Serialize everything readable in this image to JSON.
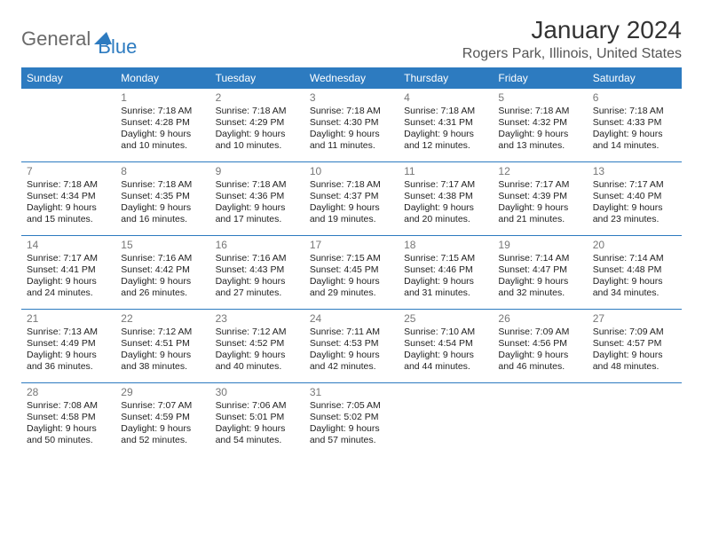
{
  "logo": {
    "part1": "General",
    "part2": "Blue"
  },
  "title": "January 2024",
  "location": "Rogers Park, Illinois, United States",
  "colors": {
    "header_bg": "#2d7bc0",
    "header_text": "#ffffff",
    "rule": "#2d7bc0",
    "body_text": "#222222",
    "muted": "#777777"
  },
  "weekdays": [
    "Sunday",
    "Monday",
    "Tuesday",
    "Wednesday",
    "Thursday",
    "Friday",
    "Saturday"
  ],
  "weeks": [
    [
      {
        "num": "",
        "lines": []
      },
      {
        "num": "1",
        "lines": [
          "Sunrise: 7:18 AM",
          "Sunset: 4:28 PM",
          "Daylight: 9 hours and 10 minutes."
        ]
      },
      {
        "num": "2",
        "lines": [
          "Sunrise: 7:18 AM",
          "Sunset: 4:29 PM",
          "Daylight: 9 hours and 10 minutes."
        ]
      },
      {
        "num": "3",
        "lines": [
          "Sunrise: 7:18 AM",
          "Sunset: 4:30 PM",
          "Daylight: 9 hours and 11 minutes."
        ]
      },
      {
        "num": "4",
        "lines": [
          "Sunrise: 7:18 AM",
          "Sunset: 4:31 PM",
          "Daylight: 9 hours and 12 minutes."
        ]
      },
      {
        "num": "5",
        "lines": [
          "Sunrise: 7:18 AM",
          "Sunset: 4:32 PM",
          "Daylight: 9 hours and 13 minutes."
        ]
      },
      {
        "num": "6",
        "lines": [
          "Sunrise: 7:18 AM",
          "Sunset: 4:33 PM",
          "Daylight: 9 hours and 14 minutes."
        ]
      }
    ],
    [
      {
        "num": "7",
        "lines": [
          "Sunrise: 7:18 AM",
          "Sunset: 4:34 PM",
          "Daylight: 9 hours and 15 minutes."
        ]
      },
      {
        "num": "8",
        "lines": [
          "Sunrise: 7:18 AM",
          "Sunset: 4:35 PM",
          "Daylight: 9 hours and 16 minutes."
        ]
      },
      {
        "num": "9",
        "lines": [
          "Sunrise: 7:18 AM",
          "Sunset: 4:36 PM",
          "Daylight: 9 hours and 17 minutes."
        ]
      },
      {
        "num": "10",
        "lines": [
          "Sunrise: 7:18 AM",
          "Sunset: 4:37 PM",
          "Daylight: 9 hours and 19 minutes."
        ]
      },
      {
        "num": "11",
        "lines": [
          "Sunrise: 7:17 AM",
          "Sunset: 4:38 PM",
          "Daylight: 9 hours and 20 minutes."
        ]
      },
      {
        "num": "12",
        "lines": [
          "Sunrise: 7:17 AM",
          "Sunset: 4:39 PM",
          "Daylight: 9 hours and 21 minutes."
        ]
      },
      {
        "num": "13",
        "lines": [
          "Sunrise: 7:17 AM",
          "Sunset: 4:40 PM",
          "Daylight: 9 hours and 23 minutes."
        ]
      }
    ],
    [
      {
        "num": "14",
        "lines": [
          "Sunrise: 7:17 AM",
          "Sunset: 4:41 PM",
          "Daylight: 9 hours and 24 minutes."
        ]
      },
      {
        "num": "15",
        "lines": [
          "Sunrise: 7:16 AM",
          "Sunset: 4:42 PM",
          "Daylight: 9 hours and 26 minutes."
        ]
      },
      {
        "num": "16",
        "lines": [
          "Sunrise: 7:16 AM",
          "Sunset: 4:43 PM",
          "Daylight: 9 hours and 27 minutes."
        ]
      },
      {
        "num": "17",
        "lines": [
          "Sunrise: 7:15 AM",
          "Sunset: 4:45 PM",
          "Daylight: 9 hours and 29 minutes."
        ]
      },
      {
        "num": "18",
        "lines": [
          "Sunrise: 7:15 AM",
          "Sunset: 4:46 PM",
          "Daylight: 9 hours and 31 minutes."
        ]
      },
      {
        "num": "19",
        "lines": [
          "Sunrise: 7:14 AM",
          "Sunset: 4:47 PM",
          "Daylight: 9 hours and 32 minutes."
        ]
      },
      {
        "num": "20",
        "lines": [
          "Sunrise: 7:14 AM",
          "Sunset: 4:48 PM",
          "Daylight: 9 hours and 34 minutes."
        ]
      }
    ],
    [
      {
        "num": "21",
        "lines": [
          "Sunrise: 7:13 AM",
          "Sunset: 4:49 PM",
          "Daylight: 9 hours and 36 minutes."
        ]
      },
      {
        "num": "22",
        "lines": [
          "Sunrise: 7:12 AM",
          "Sunset: 4:51 PM",
          "Daylight: 9 hours and 38 minutes."
        ]
      },
      {
        "num": "23",
        "lines": [
          "Sunrise: 7:12 AM",
          "Sunset: 4:52 PM",
          "Daylight: 9 hours and 40 minutes."
        ]
      },
      {
        "num": "24",
        "lines": [
          "Sunrise: 7:11 AM",
          "Sunset: 4:53 PM",
          "Daylight: 9 hours and 42 minutes."
        ]
      },
      {
        "num": "25",
        "lines": [
          "Sunrise: 7:10 AM",
          "Sunset: 4:54 PM",
          "Daylight: 9 hours and 44 minutes."
        ]
      },
      {
        "num": "26",
        "lines": [
          "Sunrise: 7:09 AM",
          "Sunset: 4:56 PM",
          "Daylight: 9 hours and 46 minutes."
        ]
      },
      {
        "num": "27",
        "lines": [
          "Sunrise: 7:09 AM",
          "Sunset: 4:57 PM",
          "Daylight: 9 hours and 48 minutes."
        ]
      }
    ],
    [
      {
        "num": "28",
        "lines": [
          "Sunrise: 7:08 AM",
          "Sunset: 4:58 PM",
          "Daylight: 9 hours and 50 minutes."
        ]
      },
      {
        "num": "29",
        "lines": [
          "Sunrise: 7:07 AM",
          "Sunset: 4:59 PM",
          "Daylight: 9 hours and 52 minutes."
        ]
      },
      {
        "num": "30",
        "lines": [
          "Sunrise: 7:06 AM",
          "Sunset: 5:01 PM",
          "Daylight: 9 hours and 54 minutes."
        ]
      },
      {
        "num": "31",
        "lines": [
          "Sunrise: 7:05 AM",
          "Sunset: 5:02 PM",
          "Daylight: 9 hours and 57 minutes."
        ]
      },
      {
        "num": "",
        "lines": []
      },
      {
        "num": "",
        "lines": []
      },
      {
        "num": "",
        "lines": []
      }
    ]
  ]
}
